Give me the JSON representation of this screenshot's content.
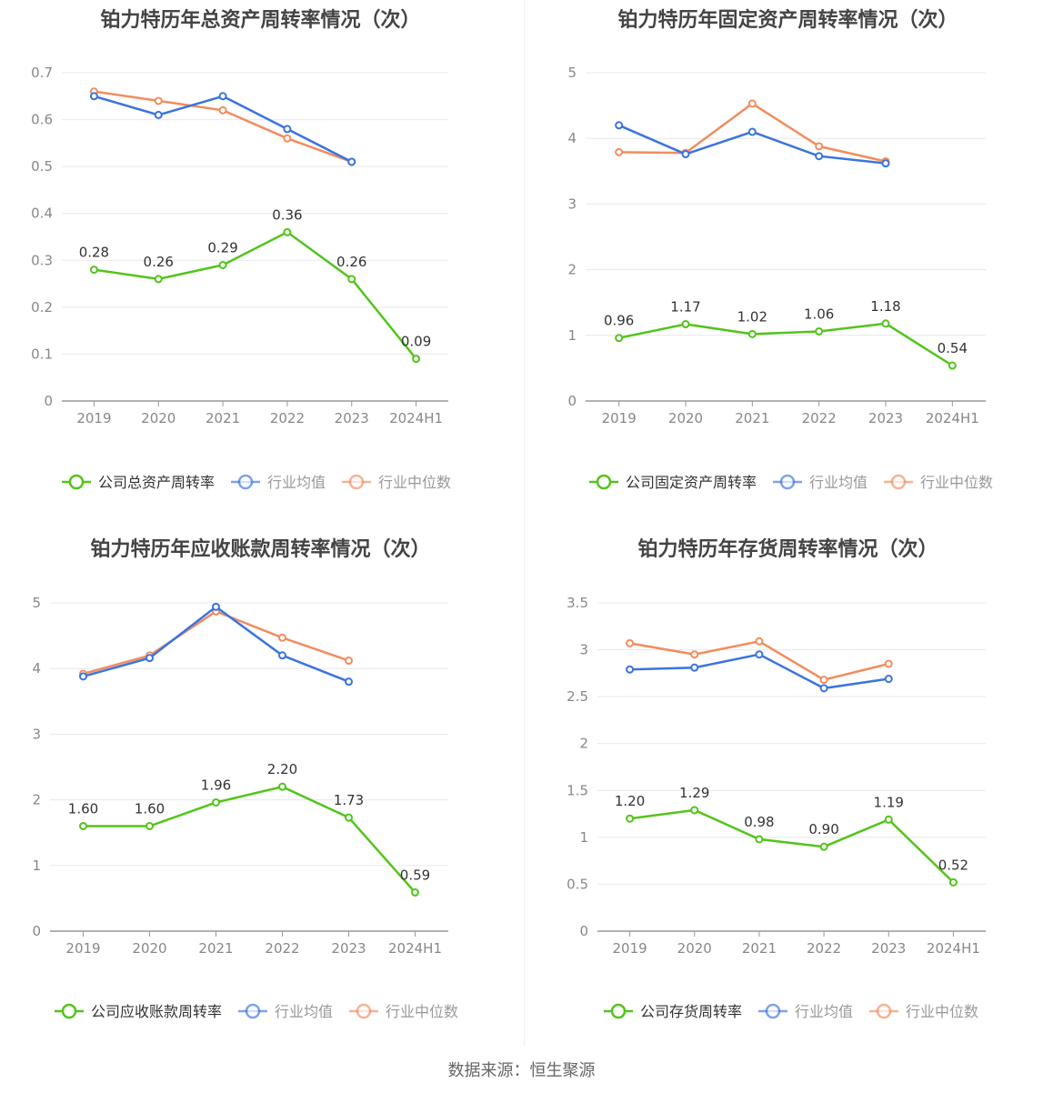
{
  "source_text": "数据来源：恒生聚源",
  "colors": {
    "company": "#52c41a",
    "avg": "#3b73e0",
    "median": "#f28c5e"
  },
  "chart_data": [
    {
      "type": "line",
      "title": "铂力特历年总资产周转率情况（次）",
      "categories": [
        "2019",
        "2020",
        "2021",
        "2022",
        "2023",
        "2024H1"
      ],
      "ylim": [
        0,
        0.7
      ],
      "yticks": [
        0,
        0.1,
        0.2,
        0.3,
        0.4,
        0.5,
        0.6,
        0.7
      ],
      "yticklabels": [
        "0",
        "0.1",
        "0.2",
        "0.3",
        "0.4",
        "0.5",
        "0.6",
        "0.7"
      ],
      "legend_position": "bottom",
      "series": [
        {
          "name": "公司总资产周转率",
          "values": [
            0.28,
            0.26,
            0.29,
            0.36,
            0.26,
            0.09
          ],
          "labels": [
            "0.28",
            "0.26",
            "0.29",
            "0.36",
            "0.26",
            "0.09"
          ]
        },
        {
          "name": "行业均值",
          "values": [
            0.65,
            0.61,
            0.65,
            0.58,
            0.51,
            null
          ]
        },
        {
          "name": "行业中位数",
          "values": [
            0.66,
            0.64,
            0.62,
            0.56,
            0.51,
            null
          ]
        }
      ]
    },
    {
      "type": "line",
      "title": "铂力特历年固定资产周转率情况（次）",
      "categories": [
        "2019",
        "2020",
        "2021",
        "2022",
        "2023",
        "2024H1"
      ],
      "ylim": [
        0,
        5
      ],
      "yticks": [
        0,
        1,
        2,
        3,
        4,
        5
      ],
      "yticklabels": [
        "0",
        "1",
        "2",
        "3",
        "4",
        "5"
      ],
      "legend_position": "bottom",
      "series": [
        {
          "name": "公司固定资产周转率",
          "values": [
            0.96,
            1.17,
            1.02,
            1.06,
            1.18,
            0.54
          ],
          "labels": [
            "0.96",
            "1.17",
            "1.02",
            "1.06",
            "1.18",
            "0.54"
          ]
        },
        {
          "name": "行业均值",
          "values": [
            4.2,
            3.76,
            4.1,
            3.73,
            3.62,
            null
          ]
        },
        {
          "name": "行业中位数",
          "values": [
            3.79,
            3.78,
            4.53,
            3.88,
            3.65,
            null
          ]
        }
      ]
    },
    {
      "type": "line",
      "title": "铂力特历年应收账款周转率情况（次）",
      "categories": [
        "2019",
        "2020",
        "2021",
        "2022",
        "2023",
        "2024H1"
      ],
      "ylim": [
        0,
        5
      ],
      "yticks": [
        0,
        1,
        2,
        3,
        4,
        5
      ],
      "yticklabels": [
        "0",
        "1",
        "2",
        "3",
        "4",
        "5"
      ],
      "legend_position": "bottom",
      "series": [
        {
          "name": "公司应收账款周转率",
          "values": [
            1.6,
            1.6,
            1.96,
            2.2,
            1.73,
            0.59
          ],
          "labels": [
            "1.60",
            "1.60",
            "1.96",
            "2.20",
            "1.73",
            "0.59"
          ]
        },
        {
          "name": "行业均值",
          "values": [
            3.88,
            4.16,
            4.94,
            4.2,
            3.8,
            null
          ]
        },
        {
          "name": "行业中位数",
          "values": [
            3.92,
            4.2,
            4.87,
            4.47,
            4.12,
            null
          ]
        }
      ]
    },
    {
      "type": "line",
      "title": "铂力特历年存货周转率情况（次）",
      "categories": [
        "2019",
        "2020",
        "2021",
        "2022",
        "2023",
        "2024H1"
      ],
      "ylim": [
        0,
        3.5
      ],
      "yticks": [
        0,
        0.5,
        1,
        1.5,
        2,
        2.5,
        3,
        3.5
      ],
      "yticklabels": [
        "0",
        "0.5",
        "1",
        "1.5",
        "2",
        "2.5",
        "3",
        "3.5"
      ],
      "legend_position": "bottom",
      "series": [
        {
          "name": "公司存货周转率",
          "values": [
            1.2,
            1.29,
            0.98,
            0.9,
            1.19,
            0.52
          ],
          "labels": [
            "1.20",
            "1.29",
            "0.98",
            "0.90",
            "1.19",
            "0.52"
          ]
        },
        {
          "name": "行业均值",
          "values": [
            2.79,
            2.81,
            2.95,
            2.59,
            2.69,
            null
          ]
        },
        {
          "name": "行业中位数",
          "values": [
            3.07,
            2.95,
            3.09,
            2.68,
            2.85,
            null
          ]
        }
      ]
    }
  ]
}
